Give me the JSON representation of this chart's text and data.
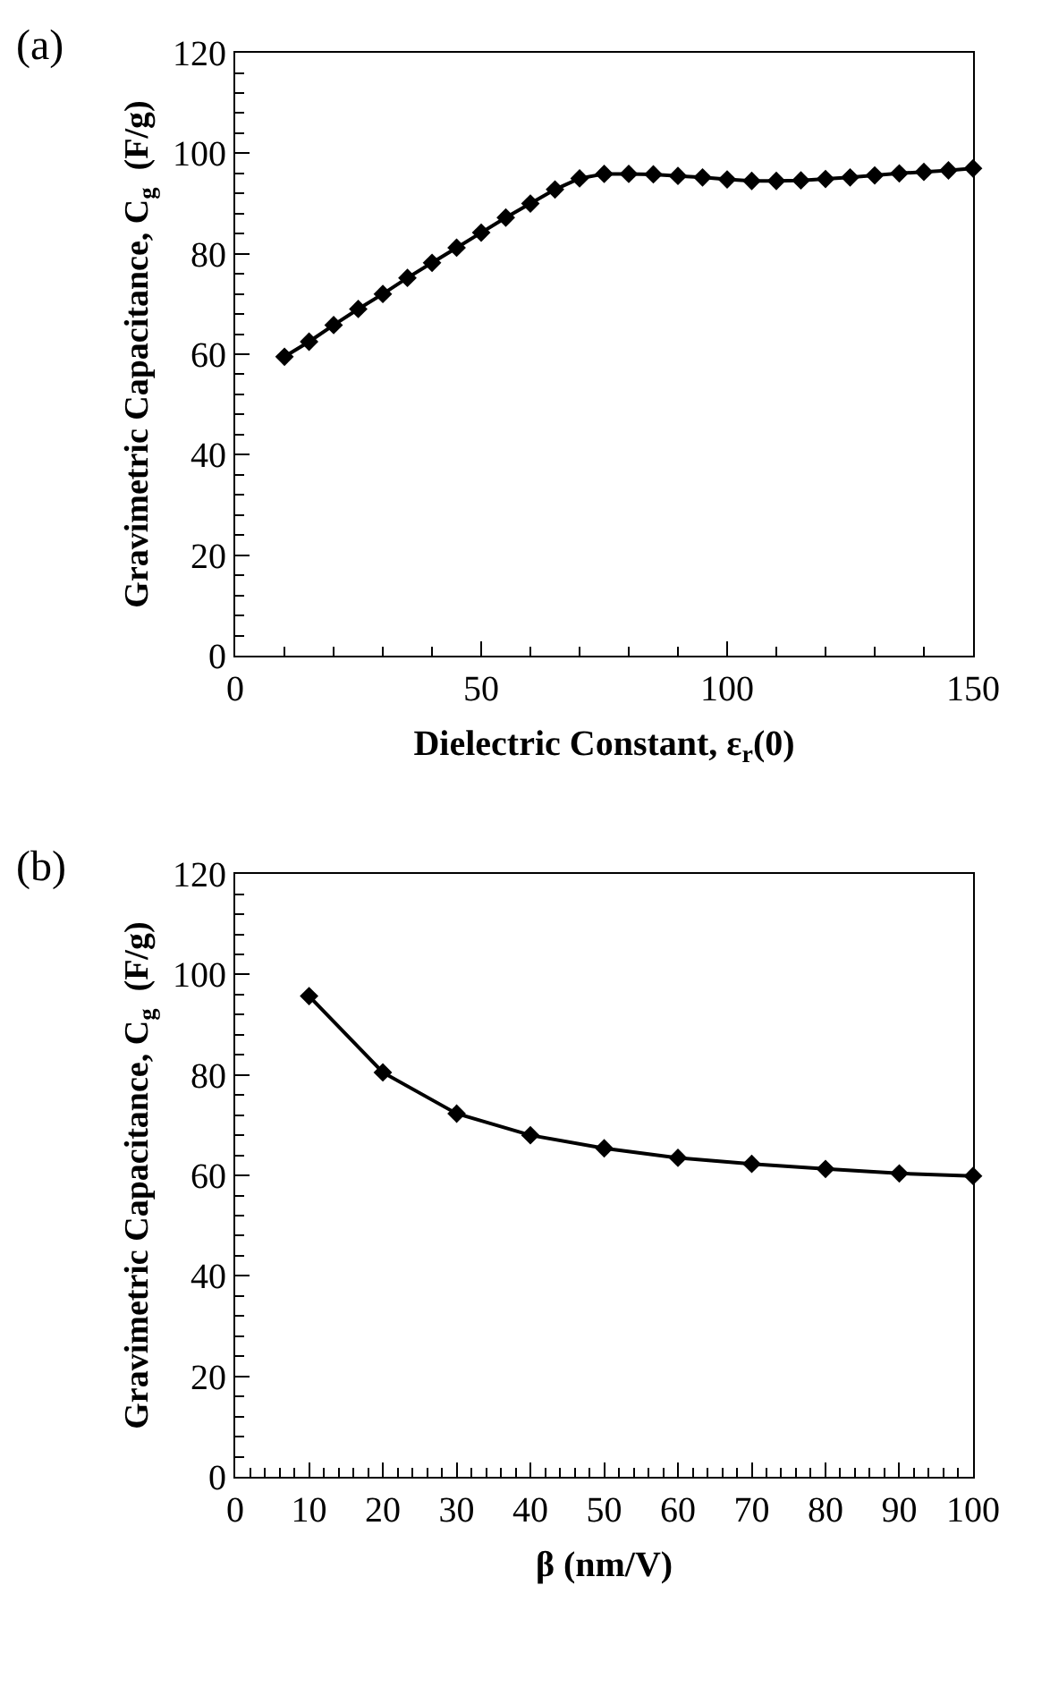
{
  "chart_data": [
    {
      "type": "line",
      "xlabel": "Dielectric Constant, ε$_{r}$(0)",
      "ylabel": "Gravimetric Capacitance, C$_{g}$  (F/g)",
      "annotations": [
        "(a)"
      ],
      "marker": "diamond",
      "line_style": "solid",
      "x": [
        10,
        15,
        20,
        25,
        30,
        35,
        40,
        45,
        50,
        55,
        60,
        65,
        70,
        75,
        80,
        85,
        90,
        95,
        100,
        105,
        110,
        115,
        120,
        125,
        130,
        135,
        140,
        145,
        150
      ],
      "series": [
        {
          "color": "#000000",
          "values": [
            59.5,
            62.5,
            65.8,
            69,
            72,
            75.2,
            78.2,
            81.2,
            84.2,
            87.2,
            90,
            92.8,
            95,
            95.9,
            95.9,
            95.8,
            95.5,
            95.2,
            94.8,
            94.5,
            94.5,
            94.6,
            94.9,
            95.2,
            95.6,
            96,
            96.3,
            96.6,
            97
          ]
        }
      ],
      "xlim": [
        0,
        150
      ],
      "ylim": [
        0,
        120
      ],
      "xticks": [
        0,
        {
          "value": 10,
          "label": null
        },
        {
          "value": 20,
          "label": null
        },
        {
          "value": 30,
          "label": null
        },
        {
          "value": 40,
          "label": null
        },
        50,
        {
          "value": 60,
          "label": null
        },
        {
          "value": 70,
          "label": null
        },
        {
          "value": 80,
          "label": null
        },
        {
          "value": 90,
          "label": null
        },
        100,
        {
          "value": 110,
          "label": null
        },
        {
          "value": 120,
          "label": null
        },
        {
          "value": 130,
          "label": null
        },
        {
          "value": 140,
          "label": null
        },
        150
      ],
      "yticks": [
        0,
        {
          "value": 4,
          "label": null
        },
        {
          "value": 8,
          "label": null
        },
        {
          "value": 12,
          "label": null
        },
        {
          "value": 16,
          "label": null
        },
        20,
        {
          "value": 24,
          "label": null
        },
        {
          "value": 28,
          "label": null
        },
        {
          "value": 32,
          "label": null
        },
        {
          "value": 36,
          "label": null
        },
        40,
        {
          "value": 44,
          "label": null
        },
        {
          "value": 48,
          "label": null
        },
        {
          "value": 52,
          "label": null
        },
        {
          "value": 56,
          "label": null
        },
        60,
        {
          "value": 64,
          "label": null
        },
        {
          "value": 68,
          "label": null
        },
        {
          "value": 72,
          "label": null
        },
        {
          "value": 76,
          "label": null
        },
        80,
        {
          "value": 84,
          "label": null
        },
        {
          "value": 88,
          "label": null
        },
        {
          "value": 92,
          "label": null
        },
        {
          "value": 96,
          "label": null
        },
        100,
        {
          "value": 104,
          "label": null
        },
        {
          "value": 108,
          "label": null
        },
        {
          "value": 112,
          "label": null
        },
        {
          "value": 116,
          "label": null
        },
        120
      ]
    },
    {
      "type": "line",
      "xlabel": "β (nm/V)",
      "ylabel": "Gravimetric Capacitance, C$_{g}$  (F/g)",
      "annotations": [
        "(b)"
      ],
      "marker": "diamond",
      "line_style": "solid",
      "x": [
        10,
        20,
        30,
        40,
        50,
        60,
        70,
        80,
        90,
        100
      ],
      "series": [
        {
          "color": "#000000",
          "values": [
            95.7,
            80.5,
            72.3,
            68,
            65.4,
            63.5,
            62.3,
            61.3,
            60.4,
            59.9
          ]
        }
      ],
      "xlim": [
        0,
        100
      ],
      "ylim": [
        0,
        120
      ],
      "xticks": [
        0,
        {
          "value": 2,
          "label": null
        },
        {
          "value": 4,
          "label": null
        },
        {
          "value": 6,
          "label": null
        },
        {
          "value": 8,
          "label": null
        },
        10,
        {
          "value": 12,
          "label": null
        },
        {
          "value": 14,
          "label": null
        },
        {
          "value": 16,
          "label": null
        },
        {
          "value": 18,
          "label": null
        },
        20,
        {
          "value": 22,
          "label": null
        },
        {
          "value": 24,
          "label": null
        },
        {
          "value": 26,
          "label": null
        },
        {
          "value": 28,
          "label": null
        },
        30,
        {
          "value": 32,
          "label": null
        },
        {
          "value": 34,
          "label": null
        },
        {
          "value": 36,
          "label": null
        },
        {
          "value": 38,
          "label": null
        },
        40,
        {
          "value": 42,
          "label": null
        },
        {
          "value": 44,
          "label": null
        },
        {
          "value": 46,
          "label": null
        },
        {
          "value": 48,
          "label": null
        },
        50,
        {
          "value": 52,
          "label": null
        },
        {
          "value": 54,
          "label": null
        },
        {
          "value": 56,
          "label": null
        },
        {
          "value": 58,
          "label": null
        },
        60,
        {
          "value": 62,
          "label": null
        },
        {
          "value": 64,
          "label": null
        },
        {
          "value": 66,
          "label": null
        },
        {
          "value": 68,
          "label": null
        },
        70,
        {
          "value": 72,
          "label": null
        },
        {
          "value": 74,
          "label": null
        },
        {
          "value": 76,
          "label": null
        },
        {
          "value": 78,
          "label": null
        },
        80,
        {
          "value": 82,
          "label": null
        },
        {
          "value": 84,
          "label": null
        },
        {
          "value": 86,
          "label": null
        },
        {
          "value": 88,
          "label": null
        },
        90,
        {
          "value": 92,
          "label": null
        },
        {
          "value": 94,
          "label": null
        },
        {
          "value": 96,
          "label": null
        },
        {
          "value": 98,
          "label": null
        },
        100
      ],
      "yticks": [
        0,
        {
          "value": 4,
          "label": null
        },
        {
          "value": 8,
          "label": null
        },
        {
          "value": 12,
          "label": null
        },
        {
          "value": 16,
          "label": null
        },
        20,
        {
          "value": 24,
          "label": null
        },
        {
          "value": 28,
          "label": null
        },
        {
          "value": 32,
          "label": null
        },
        {
          "value": 36,
          "label": null
        },
        40,
        {
          "value": 44,
          "label": null
        },
        {
          "value": 48,
          "label": null
        },
        {
          "value": 52,
          "label": null
        },
        {
          "value": 56,
          "label": null
        },
        60,
        {
          "value": 64,
          "label": null
        },
        {
          "value": 68,
          "label": null
        },
        {
          "value": 72,
          "label": null
        },
        {
          "value": 76,
          "label": null
        },
        80,
        {
          "value": 84,
          "label": null
        },
        {
          "value": 88,
          "label": null
        },
        {
          "value": 92,
          "label": null
        },
        {
          "value": 96,
          "label": null
        },
        100,
        {
          "value": 104,
          "label": null
        },
        {
          "value": 108,
          "label": null
        },
        {
          "value": 112,
          "label": null
        },
        {
          "value": 116,
          "label": null
        },
        120
      ]
    }
  ]
}
